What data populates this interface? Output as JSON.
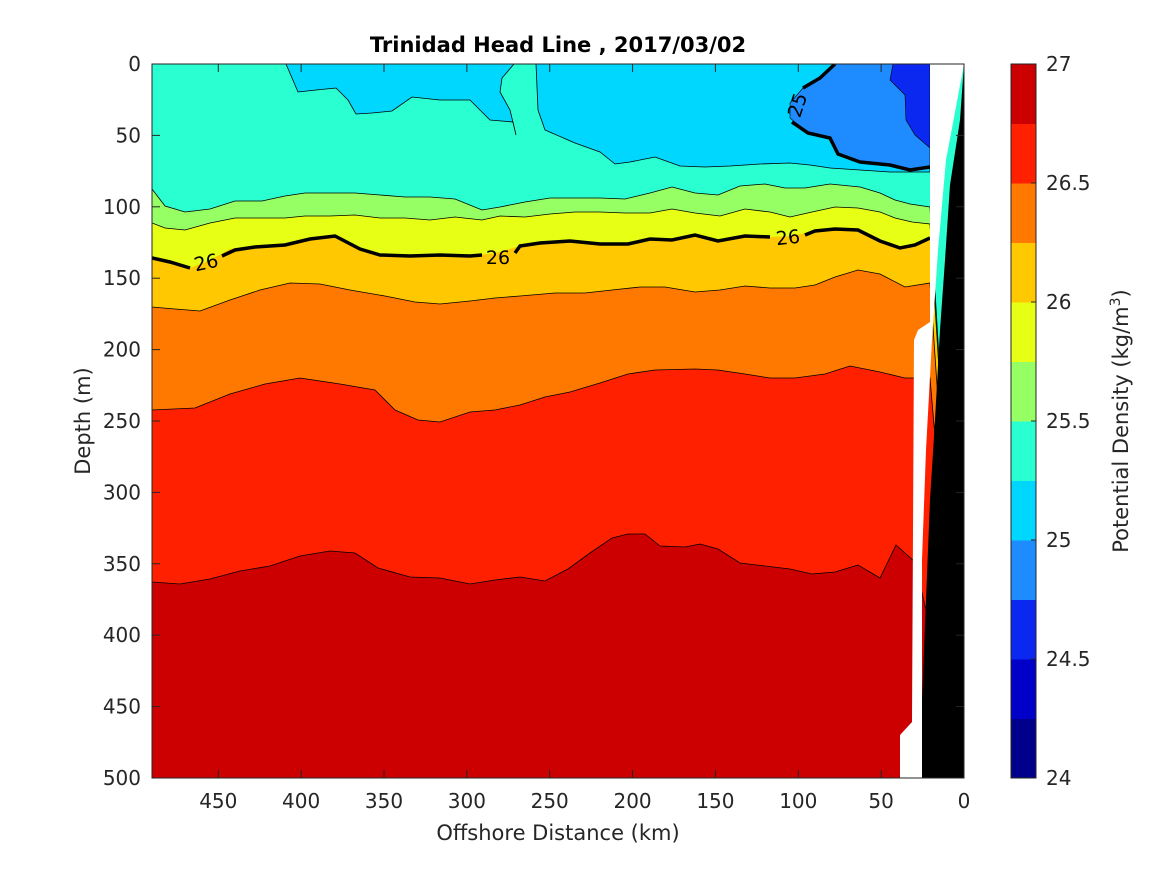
{
  "chart_data": {
    "type": "contour",
    "title": "Trinidad Head Line , 2017/03/02",
    "xlabel": "Offshore Distance (km)",
    "ylabel": "Depth (m)",
    "xlim": [
      490,
      0
    ],
    "ylim": [
      0,
      500
    ],
    "x_ticks": [
      450,
      400,
      350,
      300,
      250,
      200,
      150,
      100,
      50,
      0
    ],
    "y_ticks": [
      0,
      50,
      100,
      150,
      200,
      250,
      300,
      350,
      400,
      450,
      500
    ],
    "colorbar": {
      "label": "Potential Density (kg/m³)",
      "label_main": "Potential Density (kg/m",
      "label_sup": "3",
      "label_end": ")",
      "range": [
        24,
        27
      ],
      "ticks": [
        24,
        24.5,
        25,
        25.5,
        26,
        26.5,
        27
      ],
      "tick_labels": [
        "24",
        "24.5",
        "25",
        "25.5",
        "26",
        "26.5",
        "27"
      ],
      "colors": [
        "#00008b",
        "#0000c8",
        "#0a28f0",
        "#1e8cff",
        "#00d7ff",
        "#2affd2",
        "#96ff64",
        "#e6ff14",
        "#ffc800",
        "#ff7800",
        "#ff2000",
        "#cc0000"
      ]
    },
    "contour_levels": {
      "boundaries": [
        24.75,
        25.0,
        25.25,
        25.5,
        25.75,
        26.0,
        26.25,
        26.5,
        26.75
      ],
      "layer_depth_max_m": [
        {
          "x": [
            80,
            60,
            40,
            30,
            20
          ],
          "depth": [
            30,
            48,
            60,
            62,
            60
          ],
          "label": "24.75"
        },
        {
          "x": [
            490,
            400,
            300,
            200,
            100,
            80,
            40,
            20
          ],
          "depth": [
            89,
            100,
            101,
            100,
            55,
            55,
            71,
            70
          ],
          "label": "25.0 (label 25)"
        },
        {
          "x": [
            490,
            450,
            400,
            350,
            300,
            250,
            200,
            150,
            100,
            50,
            20
          ],
          "depth": [
            89,
            104,
            97,
            92,
            100,
            93,
            92,
            90,
            85,
            93,
            100
          ],
          "label": "25.25"
        },
        {
          "x": [
            490,
            450,
            400,
            350,
            300,
            250,
            200,
            150,
            100,
            50,
            20
          ],
          "depth": [
            106,
            115,
            110,
            110,
            115,
            110,
            108,
            107,
            100,
            108,
            112
          ],
          "label": "25.5"
        },
        {
          "x": [
            490,
            460,
            430,
            380,
            350,
            300,
            250,
            200,
            180,
            150,
            120,
            70,
            40,
            20
          ],
          "depth": [
            135,
            144,
            132,
            120,
            130,
            135,
            126,
            127,
            120,
            127,
            120,
            116,
            130,
            122
          ],
          "label": "26"
        },
        {
          "x": [
            490,
            450,
            400,
            350,
            320,
            250,
            200,
            150,
            100,
            60,
            20
          ],
          "depth": [
            170,
            172,
            155,
            160,
            168,
            158,
            155,
            157,
            156,
            145,
            155
          ],
          "label": "26.25"
        },
        {
          "x": [
            490,
            450,
            400,
            350,
            320,
            250,
            200,
            150,
            100,
            60,
            30
          ],
          "depth": [
            240,
            240,
            220,
            230,
            250,
            232,
            214,
            221,
            220,
            213,
            222
          ],
          "label": "26.5"
        },
        {
          "x": [
            490,
            450,
            400,
            350,
            300,
            250,
            200,
            150,
            100,
            60,
            40,
            30
          ],
          "depth": [
            362,
            360,
            343,
            360,
            363,
            363,
            330,
            340,
            356,
            355,
            336,
            350
          ],
          "label": "26.75"
        }
      ]
    },
    "bottom_profile": {
      "x": [
        20,
        35,
        40
      ],
      "depth": [
        0,
        100,
        500
      ]
    },
    "annotations": [
      "26",
      "26",
      "26",
      "25"
    ]
  }
}
